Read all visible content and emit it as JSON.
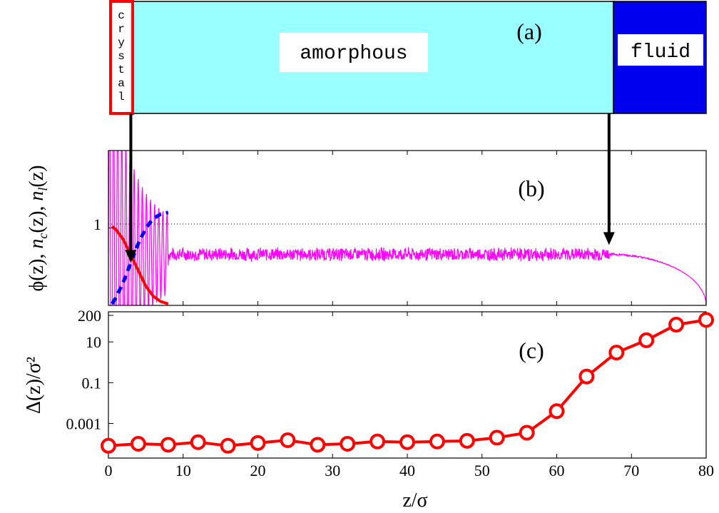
{
  "panel_a": {
    "label": "(a)",
    "regions": [
      {
        "name": "crystal",
        "letters": [
          "c",
          "r",
          "y",
          "s",
          "t",
          "a",
          "l"
        ],
        "fill": "#ffffff",
        "border": "#ff0000",
        "z_start": 0,
        "z_end": 3
      },
      {
        "name": "amorphous",
        "text": "amorphous",
        "fill": "#99ffff",
        "z_start": 3,
        "z_end": 67
      },
      {
        "name": "fluid",
        "text": "fluid",
        "fill": "#0000ee",
        "z_start": 67,
        "z_end": 80
      }
    ]
  },
  "chart_data": [
    {
      "type": "line",
      "label": "(b)",
      "ylabel": "ϕ(z),  n_c(z),  n_l(z)",
      "ytick": "1",
      "xlim": [
        0,
        80
      ],
      "ylim": [
        0,
        2.0
      ],
      "reference_line": {
        "y": 1,
        "style": "dotted"
      },
      "series": [
        {
          "color": "#ff00ff",
          "style": "noisy-oscillating",
          "oscillation_until": 8,
          "plateau": 0.66,
          "noise": 0.06,
          "decay_start": 67,
          "value_at_67": 0.66,
          "value_at_80": 0.0
        },
        {
          "color": "#ff0000",
          "style": "solid",
          "x": [
            0.5,
            1,
            2,
            3,
            4,
            5,
            6,
            7,
            8
          ],
          "y": [
            1.02,
            0.98,
            0.85,
            0.65,
            0.45,
            0.25,
            0.12,
            0.05,
            0.02
          ]
        },
        {
          "color": "#0000ff",
          "style": "dashed",
          "x": [
            0.5,
            1,
            2,
            3,
            4,
            5,
            6,
            7,
            8
          ],
          "y": [
            0.02,
            0.1,
            0.3,
            0.55,
            0.8,
            1.0,
            1.12,
            1.18,
            1.2
          ]
        }
      ],
      "arrows": [
        {
          "from_panel": "a",
          "z": 3
        },
        {
          "from_panel": "a",
          "z": 67
        }
      ]
    },
    {
      "type": "line",
      "label": "(c)",
      "xlabel": "z/σ",
      "ylabel": "Δ(z)/σ²",
      "yscale": "log",
      "ylim": [
        2e-05,
        300
      ],
      "yticks": [
        "0.001",
        "0.1",
        "10",
        "200"
      ],
      "ytick_values": [
        0.001,
        0.1,
        10,
        200
      ],
      "xlim": [
        0,
        80
      ],
      "xticks": [
        0,
        10,
        20,
        30,
        40,
        50,
        60,
        70,
        80
      ],
      "series": [
        {
          "color": "#ff0000",
          "marker": "circle",
          "x": [
            0,
            4,
            8,
            12,
            16,
            20,
            24,
            28,
            32,
            36,
            40,
            44,
            48,
            52,
            56,
            60,
            64,
            68,
            72,
            76,
            80
          ],
          "y": [
            8e-05,
            0.0001,
            9e-05,
            0.00012,
            8e-05,
            0.00011,
            0.00015,
            9e-05,
            0.0001,
            0.00013,
            0.00012,
            0.00013,
            0.00014,
            0.0002,
            0.00035,
            0.004,
            0.2,
            3,
            12,
            70,
            120
          ]
        }
      ]
    }
  ]
}
